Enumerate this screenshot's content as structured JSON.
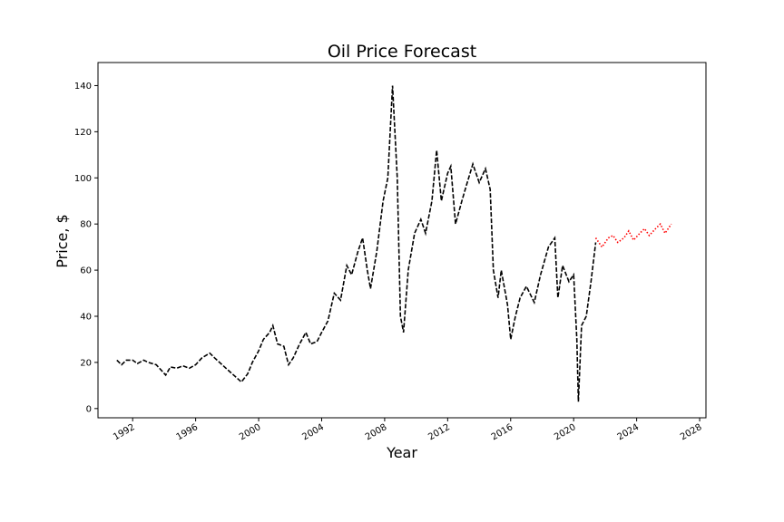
{
  "chart_data": {
    "type": "line",
    "title": "Oil Price Forecast",
    "xlabel": "Year",
    "ylabel": "Price, $",
    "xlim": [
      1989.8,
      2028.4
    ],
    "ylim": [
      -4,
      150
    ],
    "grid": false,
    "x_ticks": [
      "1992",
      "1996",
      "2000",
      "2004",
      "2008",
      "2012",
      "2016",
      "2020",
      "2024",
      "2028"
    ],
    "y_ticks": [
      "0",
      "20",
      "40",
      "60",
      "80",
      "100",
      "120",
      "140"
    ],
    "series": [
      {
        "color": "#000000",
        "style": "dashed",
        "points": [
          [
            1991.0,
            21
          ],
          [
            1991.3,
            19
          ],
          [
            1991.6,
            21
          ],
          [
            1992.0,
            21
          ],
          [
            1992.3,
            19.5
          ],
          [
            1992.7,
            21
          ],
          [
            1993.0,
            20
          ],
          [
            1993.5,
            19
          ],
          [
            1993.9,
            16
          ],
          [
            1994.1,
            14.5
          ],
          [
            1994.4,
            18
          ],
          [
            1994.8,
            17.5
          ],
          [
            1995.2,
            18.5
          ],
          [
            1995.6,
            17.5
          ],
          [
            1996.0,
            19
          ],
          [
            1996.4,
            22
          ],
          [
            1996.9,
            24
          ],
          [
            1997.2,
            22
          ],
          [
            1997.6,
            19.5
          ],
          [
            1998.0,
            17
          ],
          [
            1998.5,
            14
          ],
          [
            1998.9,
            11.5
          ],
          [
            1999.3,
            15
          ],
          [
            1999.6,
            20
          ],
          [
            2000.0,
            25
          ],
          [
            2000.3,
            30
          ],
          [
            2000.7,
            33
          ],
          [
            2000.9,
            36
          ],
          [
            2001.2,
            28
          ],
          [
            2001.6,
            27
          ],
          [
            2001.9,
            19
          ],
          [
            2002.2,
            22
          ],
          [
            2002.6,
            28
          ],
          [
            2003.0,
            33
          ],
          [
            2003.3,
            28
          ],
          [
            2003.7,
            29
          ],
          [
            2004.0,
            33
          ],
          [
            2004.4,
            38
          ],
          [
            2004.8,
            50
          ],
          [
            2005.2,
            47
          ],
          [
            2005.6,
            62
          ],
          [
            2005.9,
            58
          ],
          [
            2006.3,
            68
          ],
          [
            2006.6,
            74
          ],
          [
            2006.9,
            60
          ],
          [
            2007.1,
            52
          ],
          [
            2007.5,
            68
          ],
          [
            2007.9,
            90
          ],
          [
            2008.2,
            100
          ],
          [
            2008.5,
            140
          ],
          [
            2008.8,
            100
          ],
          [
            2009.0,
            40
          ],
          [
            2009.2,
            33
          ],
          [
            2009.5,
            60
          ],
          [
            2009.9,
            76
          ],
          [
            2010.3,
            82
          ],
          [
            2010.6,
            76
          ],
          [
            2011.0,
            90
          ],
          [
            2011.3,
            112
          ],
          [
            2011.6,
            90
          ],
          [
            2012.0,
            102
          ],
          [
            2012.2,
            105
          ],
          [
            2012.5,
            80
          ],
          [
            2012.9,
            90
          ],
          [
            2013.2,
            97
          ],
          [
            2013.6,
            106
          ],
          [
            2014.0,
            98
          ],
          [
            2014.4,
            104
          ],
          [
            2014.7,
            95
          ],
          [
            2014.9,
            60
          ],
          [
            2015.2,
            48
          ],
          [
            2015.4,
            60
          ],
          [
            2015.8,
            45
          ],
          [
            2016.0,
            30
          ],
          [
            2016.3,
            40
          ],
          [
            2016.6,
            48
          ],
          [
            2017.0,
            53
          ],
          [
            2017.5,
            46
          ],
          [
            2017.9,
            58
          ],
          [
            2018.4,
            70
          ],
          [
            2018.8,
            74
          ],
          [
            2019.0,
            48
          ],
          [
            2019.3,
            62
          ],
          [
            2019.7,
            55
          ],
          [
            2020.0,
            58
          ],
          [
            2020.2,
            30
          ],
          [
            2020.3,
            3
          ],
          [
            2020.5,
            36
          ],
          [
            2020.8,
            40
          ],
          [
            2021.1,
            55
          ],
          [
            2021.4,
            72
          ]
        ]
      },
      {
        "color": "#ff0000",
        "style": "dotted",
        "points": [
          [
            2021.4,
            74
          ],
          [
            2021.8,
            70
          ],
          [
            2022.2,
            74
          ],
          [
            2022.5,
            75
          ],
          [
            2022.8,
            72
          ],
          [
            2023.2,
            74
          ],
          [
            2023.5,
            77
          ],
          [
            2023.8,
            73
          ],
          [
            2024.2,
            76
          ],
          [
            2024.5,
            78
          ],
          [
            2024.8,
            75
          ],
          [
            2025.2,
            78
          ],
          [
            2025.5,
            80
          ],
          [
            2025.8,
            76
          ],
          [
            2026.2,
            80
          ]
        ]
      }
    ]
  }
}
